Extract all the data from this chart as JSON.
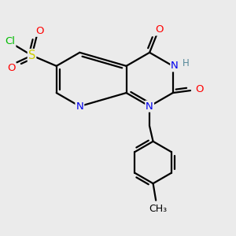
{
  "background_color": "#ebebeb",
  "bond_color": "#000000",
  "figsize": [
    3.0,
    3.0
  ],
  "dpi": 100,
  "atom_colors": {
    "N": "#0000ee",
    "O": "#ff0000",
    "S": "#cccc00",
    "Cl": "#00bb00",
    "C": "#000000",
    "H": "#558899"
  }
}
